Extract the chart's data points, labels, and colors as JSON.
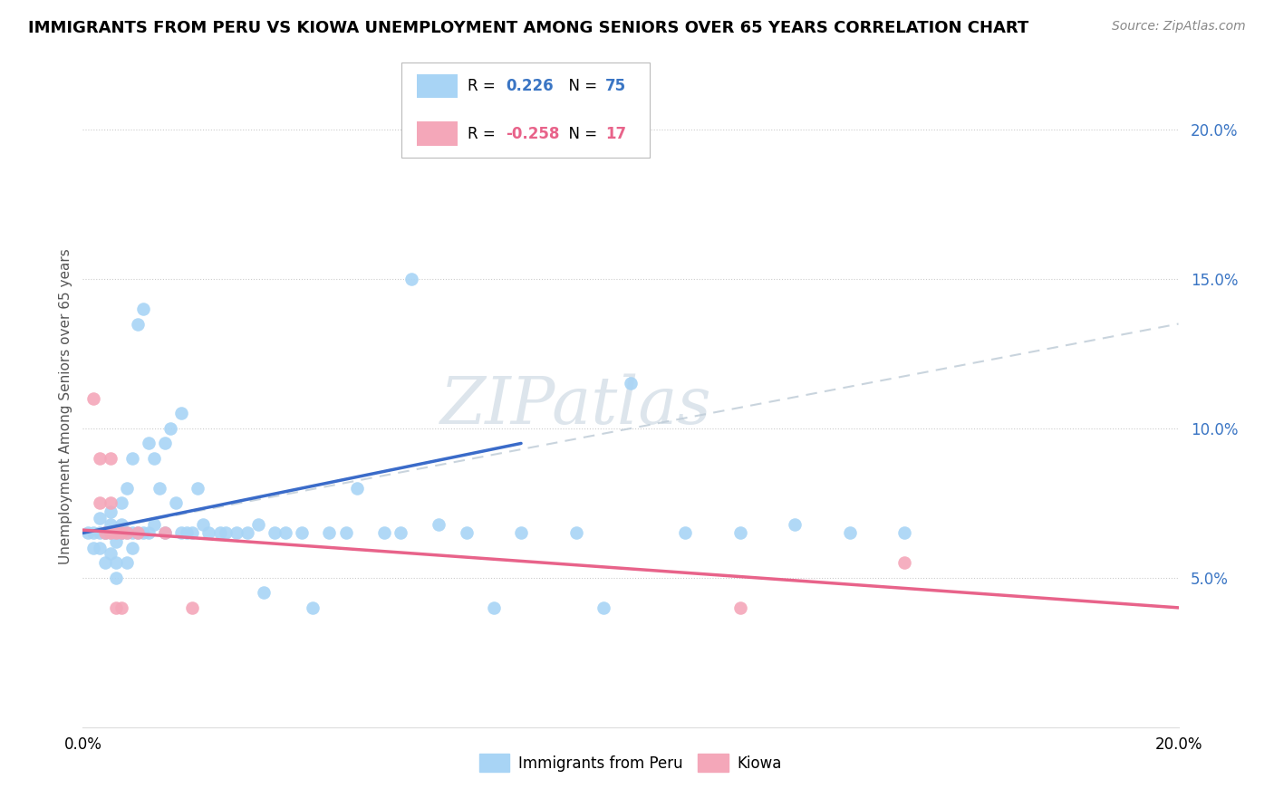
{
  "title": "IMMIGRANTS FROM PERU VS KIOWA UNEMPLOYMENT AMONG SENIORS OVER 65 YEARS CORRELATION CHART",
  "source": "Source: ZipAtlas.com",
  "ylabel": "Unemployment Among Seniors over 65 years",
  "xmin": 0.0,
  "xmax": 0.2,
  "ymin": 0.0,
  "ymax": 0.215,
  "ytick_vals": [
    0.05,
    0.1,
    0.15,
    0.2
  ],
  "ytick_labels": [
    "5.0%",
    "10.0%",
    "15.0%",
    "20.0%"
  ],
  "xtick_vals": [
    0.0,
    0.04,
    0.08,
    0.12,
    0.16,
    0.2
  ],
  "xtick_labels": [
    "0.0%",
    "",
    "",
    "",
    "",
    "20.0%"
  ],
  "legend_R_peru": "0.226",
  "legend_N_peru": "75",
  "legend_R_kiowa": "-0.258",
  "legend_N_kiowa": "17",
  "peru_dot_color": "#A8D4F5",
  "kiowa_dot_color": "#F4A7B9",
  "peru_line_color": "#3A6BC9",
  "kiowa_line_color": "#E8638A",
  "dashed_line_color": "#C0CDD8",
  "watermark": "ZIPatlas",
  "watermark_color": "#DDE5EC",
  "title_fontsize": 13,
  "source_fontsize": 10,
  "tick_fontsize": 12,
  "ylabel_fontsize": 11,
  "peru_line_x": [
    0.0,
    0.08
  ],
  "peru_line_y": [
    0.065,
    0.095
  ],
  "dashed_line_x": [
    0.0,
    0.2
  ],
  "dashed_line_y": [
    0.065,
    0.135
  ],
  "kiowa_line_x": [
    0.0,
    0.2
  ],
  "kiowa_line_y": [
    0.066,
    0.04
  ],
  "peru_x": [
    0.001,
    0.002,
    0.002,
    0.003,
    0.003,
    0.003,
    0.004,
    0.004,
    0.004,
    0.005,
    0.005,
    0.005,
    0.005,
    0.006,
    0.006,
    0.006,
    0.006,
    0.007,
    0.007,
    0.007,
    0.007,
    0.008,
    0.008,
    0.008,
    0.009,
    0.009,
    0.009,
    0.01,
    0.01,
    0.011,
    0.011,
    0.012,
    0.012,
    0.013,
    0.013,
    0.014,
    0.015,
    0.015,
    0.016,
    0.017,
    0.018,
    0.018,
    0.019,
    0.02,
    0.021,
    0.022,
    0.023,
    0.025,
    0.026,
    0.028,
    0.03,
    0.032,
    0.033,
    0.035,
    0.037,
    0.04,
    0.042,
    0.045,
    0.048,
    0.05,
    0.055,
    0.058,
    0.06,
    0.065,
    0.07,
    0.075,
    0.08,
    0.09,
    0.095,
    0.1,
    0.11,
    0.12,
    0.13,
    0.14,
    0.15
  ],
  "peru_y": [
    0.065,
    0.065,
    0.06,
    0.065,
    0.07,
    0.06,
    0.065,
    0.055,
    0.065,
    0.068,
    0.065,
    0.072,
    0.058,
    0.065,
    0.062,
    0.055,
    0.05,
    0.065,
    0.068,
    0.075,
    0.065,
    0.065,
    0.08,
    0.055,
    0.09,
    0.065,
    0.06,
    0.135,
    0.065,
    0.14,
    0.065,
    0.095,
    0.065,
    0.09,
    0.068,
    0.08,
    0.065,
    0.095,
    0.1,
    0.075,
    0.065,
    0.105,
    0.065,
    0.065,
    0.08,
    0.068,
    0.065,
    0.065,
    0.065,
    0.065,
    0.065,
    0.068,
    0.045,
    0.065,
    0.065,
    0.065,
    0.04,
    0.065,
    0.065,
    0.08,
    0.065,
    0.065,
    0.15,
    0.068,
    0.065,
    0.04,
    0.065,
    0.065,
    0.04,
    0.115,
    0.065,
    0.065,
    0.068,
    0.065,
    0.065
  ],
  "kiowa_x": [
    0.002,
    0.003,
    0.003,
    0.004,
    0.005,
    0.005,
    0.005,
    0.006,
    0.006,
    0.007,
    0.007,
    0.008,
    0.01,
    0.015,
    0.02,
    0.12,
    0.15
  ],
  "kiowa_y": [
    0.11,
    0.09,
    0.075,
    0.065,
    0.075,
    0.09,
    0.065,
    0.065,
    0.04,
    0.065,
    0.04,
    0.065,
    0.065,
    0.065,
    0.04,
    0.04,
    0.055
  ]
}
